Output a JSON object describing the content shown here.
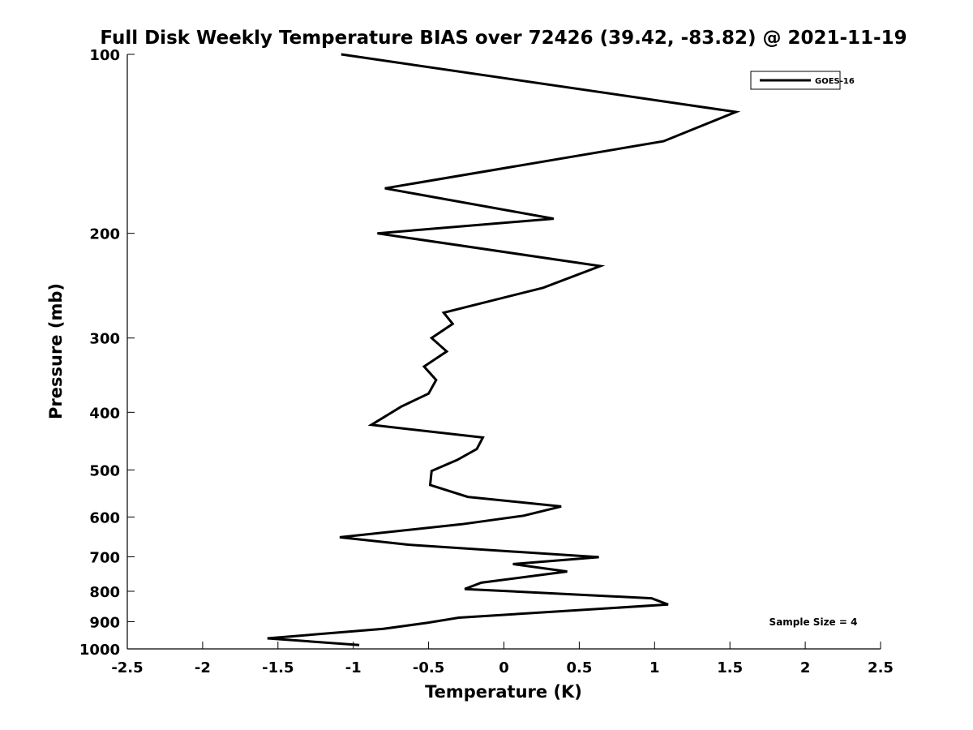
{
  "chart_data": {
    "type": "line",
    "title": "Full Disk Weekly Temperature BIAS over 72426 (39.42, -83.82) @ 2021-11-19",
    "xlabel": "Temperature (K)",
    "ylabel": "Pressure (mb)",
    "xlim": [
      -2.5,
      2.5
    ],
    "ylim": [
      100,
      1000
    ],
    "yscale": "log",
    "y_reversed": true,
    "grid": false,
    "legend_position": "top-right",
    "x_ticks": [
      -2.5,
      -2,
      -1.5,
      -1,
      -0.5,
      0,
      0.5,
      1,
      1.5,
      2,
      2.5
    ],
    "x_tick_labels": [
      "-2.5",
      "-2",
      "-1.5",
      "-1",
      "-0.5",
      "0",
      "0.5",
      "1",
      "1.5",
      "2",
      "2.5"
    ],
    "y_ticks": [
      100,
      200,
      300,
      400,
      500,
      600,
      700,
      800,
      900,
      1000
    ],
    "y_tick_labels": [
      "100",
      "200",
      "300",
      "400",
      "500",
      "600",
      "700",
      "800",
      "900",
      "1000"
    ],
    "series": [
      {
        "name": "GOES-16",
        "color": "#000000",
        "points": [
          {
            "x": -1.08,
            "p": 100
          },
          {
            "x": 1.54,
            "p": 125
          },
          {
            "x": 1.06,
            "p": 140
          },
          {
            "x": -0.79,
            "p": 168
          },
          {
            "x": 0.33,
            "p": 189
          },
          {
            "x": -0.84,
            "p": 200
          },
          {
            "x": 0.64,
            "p": 227
          },
          {
            "x": 0.26,
            "p": 247
          },
          {
            "x": -0.4,
            "p": 272
          },
          {
            "x": -0.34,
            "p": 284
          },
          {
            "x": -0.48,
            "p": 300
          },
          {
            "x": -0.38,
            "p": 316
          },
          {
            "x": -0.53,
            "p": 335
          },
          {
            "x": -0.45,
            "p": 353
          },
          {
            "x": -0.5,
            "p": 372
          },
          {
            "x": -0.68,
            "p": 391
          },
          {
            "x": -0.88,
            "p": 420
          },
          {
            "x": -0.14,
            "p": 441
          },
          {
            "x": -0.18,
            "p": 461
          },
          {
            "x": -0.31,
            "p": 481
          },
          {
            "x": -0.48,
            "p": 502
          },
          {
            "x": -0.49,
            "p": 530
          },
          {
            "x": -0.24,
            "p": 555
          },
          {
            "x": 0.38,
            "p": 576
          },
          {
            "x": 0.13,
            "p": 597
          },
          {
            "x": -0.28,
            "p": 617
          },
          {
            "x": -1.09,
            "p": 649
          },
          {
            "x": -0.63,
            "p": 668
          },
          {
            "x": 0.63,
            "p": 701
          },
          {
            "x": 0.06,
            "p": 720
          },
          {
            "x": 0.42,
            "p": 741
          },
          {
            "x": -0.15,
            "p": 774
          },
          {
            "x": -0.26,
            "p": 793
          },
          {
            "x": 0.98,
            "p": 822
          },
          {
            "x": 1.09,
            "p": 842
          },
          {
            "x": -0.3,
            "p": 886
          },
          {
            "x": -0.51,
            "p": 904
          },
          {
            "x": -0.8,
            "p": 925
          },
          {
            "x": -1.57,
            "p": 960
          },
          {
            "x": -0.96,
            "p": 985
          }
        ]
      }
    ],
    "annotations": [
      {
        "text": "Sample Size = 4",
        "position": "bottom-right"
      }
    ]
  }
}
